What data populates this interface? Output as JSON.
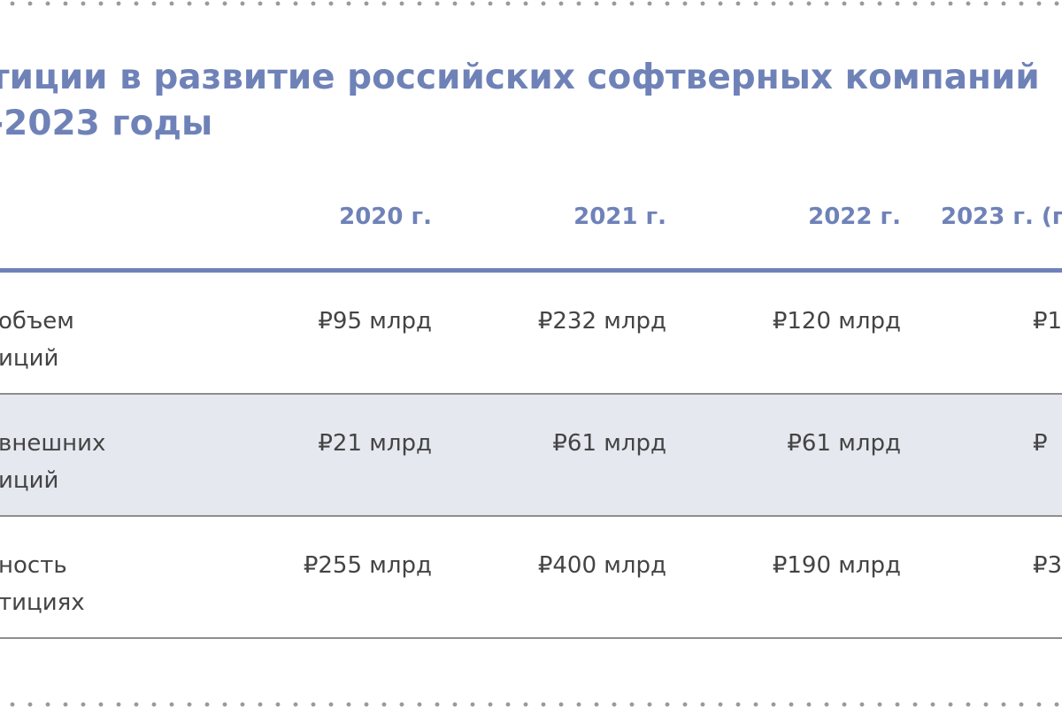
{
  "title": {
    "line1": "тиции в развитие российских софтверных компаний",
    "line2": "-2023 годы"
  },
  "columns": [
    "2020 г.",
    "2021 г.",
    "2022 г.",
    "2023 г. (п"
  ],
  "rows": [
    {
      "label": "объем\nиций",
      "values": [
        "₽95 млрд",
        "₽232 млрд",
        "₽120 млрд",
        "₽1"
      ]
    },
    {
      "label": "внешних\nиций",
      "values": [
        "₽21 млрд",
        "₽61 млрд",
        "₽61 млрд",
        "₽"
      ]
    },
    {
      "label": "ность\nтициях",
      "values": [
        "₽255 млрд",
        "₽400 млрд",
        "₽190 млрд",
        "₽3"
      ]
    }
  ],
  "colors": {
    "accent": "#6f82b8",
    "text": "#444444",
    "shaded_row": "#e6e8f0",
    "divider": "#8e8e8e"
  }
}
